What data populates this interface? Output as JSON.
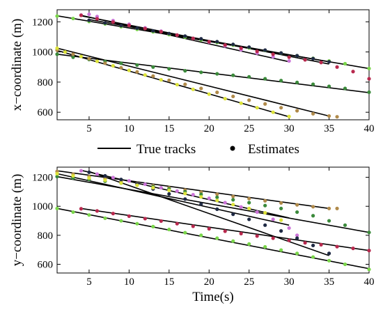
{
  "chart_data": [
    {
      "type": "line",
      "title": "",
      "xlabel": "",
      "ylabel": "x−coordinate (m)",
      "xlim": [
        1,
        40
      ],
      "ylim": [
        550,
        1280
      ],
      "xticks": [
        5,
        10,
        15,
        20,
        25,
        30,
        35,
        40
      ],
      "xtick_labels": [
        "5",
        "10",
        "15",
        "20",
        "25",
        "30",
        "35",
        "40"
      ],
      "yticks": [
        600,
        800,
        1000,
        1200
      ],
      "ytick_labels": [
        "600",
        "800",
        "1000",
        "1200"
      ],
      "grid": false,
      "series": [
        {
          "kind": "true_track",
          "color": "#000000",
          "x": [
            1,
            40
          ],
          "y": [
            1240,
            890
          ]
        },
        {
          "kind": "estimate",
          "color": "#7ad64a",
          "x": [
            1,
            3,
            5,
            7,
            9,
            11,
            13,
            15,
            17,
            19,
            21,
            23,
            25,
            27,
            29,
            31,
            33,
            35,
            37,
            40
          ],
          "y": [
            1238,
            1222,
            1202,
            1186,
            1168,
            1150,
            1133,
            1115,
            1098,
            1080,
            1062,
            1045,
            1027,
            1010,
            992,
            975,
            958,
            940,
            922,
            890
          ]
        },
        {
          "kind": "true_track",
          "color": "#000000",
          "x": [
            4,
            30
          ],
          "y": [
            1243,
            935
          ]
        },
        {
          "kind": "estimate",
          "color": "#cc74d8",
          "x": [
            4,
            5,
            6,
            8,
            10,
            12,
            14,
            16,
            18,
            20,
            22,
            24,
            26,
            28,
            30
          ],
          "y": [
            1245,
            1250,
            1235,
            1208,
            1184,
            1160,
            1138,
            1112,
            1090,
            1065,
            1040,
            1015,
            992,
            968,
            940
          ]
        },
        {
          "kind": "true_track",
          "color": "#000000",
          "x": [
            4,
            35
          ],
          "y": [
            1240,
            920
          ]
        },
        {
          "kind": "estimate",
          "color": "#b8294e",
          "x": [
            4,
            6,
            8,
            10,
            12,
            14,
            16,
            18,
            20,
            22,
            24,
            26,
            28,
            30,
            32,
            34,
            36,
            38,
            40
          ],
          "y": [
            1243,
            1220,
            1198,
            1176,
            1155,
            1134,
            1112,
            1090,
            1068,
            1046,
            1025,
            1004,
            985,
            965,
            948,
            930,
            900,
            870,
            822
          ]
        },
        {
          "kind": "true_track",
          "color": "#000000",
          "x": [
            5,
            35
          ],
          "y": [
            1215,
            935
          ]
        },
        {
          "kind": "estimate",
          "color": "#1f2a44",
          "x": [
            5,
            7,
            9,
            11,
            13,
            15,
            17,
            19,
            21,
            23,
            25,
            27,
            29,
            31,
            33,
            35
          ],
          "y": [
            1210,
            1192,
            1175,
            1158,
            1140,
            1122,
            1105,
            1087,
            1068,
            1050,
            1032,
            1012,
            993,
            975,
            956,
            935
          ]
        },
        {
          "kind": "true_track",
          "color": "#000000",
          "x": [
            1,
            40
          ],
          "y": [
            985,
            730
          ]
        },
        {
          "kind": "estimate",
          "color": "#3b8a3b",
          "x": [
            1,
            3,
            5,
            7,
            9,
            11,
            13,
            15,
            17,
            19,
            21,
            23,
            25,
            27,
            29,
            31,
            33,
            35,
            37,
            40
          ],
          "y": [
            985,
            965,
            950,
            937,
            925,
            913,
            900,
            888,
            875,
            865,
            855,
            845,
            835,
            822,
            810,
            798,
            786,
            772,
            758,
            733
          ]
        },
        {
          "kind": "true_track",
          "color": "#000000",
          "x": [
            1,
            35
          ],
          "y": [
            1025,
            575
          ]
        },
        {
          "kind": "estimate",
          "color": "#b08a4a",
          "x": [
            1,
            3,
            5,
            7,
            9,
            11,
            13,
            15,
            17,
            19,
            21,
            23,
            25,
            27,
            29,
            31,
            33,
            35,
            36
          ],
          "y": [
            1012,
            985,
            955,
            925,
            895,
            868,
            840,
            812,
            785,
            758,
            732,
            705,
            680,
            655,
            630,
            610,
            590,
            575,
            570
          ]
        },
        {
          "kind": "true_track",
          "color": "#000000",
          "x": [
            1,
            30
          ],
          "y": [
            1010,
            570
          ]
        },
        {
          "kind": "estimate",
          "color": "#dde33a",
          "x": [
            1,
            2,
            4,
            6,
            8,
            10,
            12,
            14,
            16,
            18,
            20,
            22,
            24,
            26,
            28,
            30
          ],
          "y": [
            1025,
            1000,
            970,
            938,
            908,
            878,
            847,
            815,
            783,
            752,
            720,
            690,
            660,
            630,
            600,
            572
          ]
        }
      ]
    },
    {
      "type": "line",
      "title": "",
      "xlabel": "Time(s)",
      "ylabel": "y−coordinate (m)",
      "xlim": [
        1,
        40
      ],
      "ylim": [
        540,
        1270
      ],
      "xticks": [
        5,
        10,
        15,
        20,
        25,
        30,
        35,
        40
      ],
      "xtick_labels": [
        "5",
        "10",
        "15",
        "20",
        "25",
        "30",
        "35",
        "40"
      ],
      "yticks": [
        600,
        800,
        1000,
        1200
      ],
      "ytick_labels": [
        "600",
        "800",
        "1000",
        "1200"
      ],
      "grid": false,
      "series": [
        {
          "kind": "true_track",
          "color": "#000000",
          "x": [
            1,
            35
          ],
          "y": [
            1245,
            985
          ]
        },
        {
          "kind": "estimate",
          "color": "#b08a4a",
          "x": [
            1,
            3,
            5,
            7,
            9,
            11,
            13,
            15,
            17,
            19,
            21,
            23,
            25,
            27,
            29,
            31,
            33,
            35,
            36
          ],
          "y": [
            1240,
            1222,
            1205,
            1190,
            1172,
            1158,
            1142,
            1127,
            1112,
            1098,
            1083,
            1068,
            1053,
            1038,
            1023,
            1010,
            997,
            985,
            985
          ]
        },
        {
          "kind": "true_track",
          "color": "#000000",
          "x": [
            1,
            40
          ],
          "y": [
            1205,
            820
          ]
        },
        {
          "kind": "estimate",
          "color": "#3b8a3b",
          "x": [
            1,
            3,
            5,
            7,
            9,
            11,
            13,
            15,
            17,
            19,
            21,
            23,
            25,
            27,
            29,
            31,
            33,
            35,
            37,
            40
          ],
          "y": [
            1205,
            1195,
            1185,
            1173,
            1160,
            1148,
            1135,
            1120,
            1100,
            1082,
            1062,
            1045,
            1025,
            1005,
            985,
            960,
            935,
            900,
            870,
            820
          ]
        },
        {
          "kind": "true_track",
          "color": "#000000",
          "x": [
            4,
            30
          ],
          "y": [
            1248,
            920
          ]
        },
        {
          "kind": "estimate",
          "color": "#cc74d8",
          "x": [
            4,
            6,
            8,
            10,
            12,
            14,
            16,
            18,
            20,
            22,
            24,
            26,
            28,
            30,
            31
          ],
          "y": [
            1245,
            1222,
            1198,
            1175,
            1152,
            1128,
            1105,
            1080,
            1055,
            1025,
            995,
            960,
            910,
            850,
            800
          ]
        },
        {
          "kind": "true_track",
          "color": "#000000",
          "x": [
            5,
            35
          ],
          "y": [
            1240,
            660
          ]
        },
        {
          "kind": "estimate",
          "color": "#1f2a44",
          "x": [
            5,
            7,
            9,
            11,
            13,
            15,
            17,
            19,
            21,
            23,
            25,
            27,
            29,
            31,
            33,
            35
          ],
          "y": [
            1235,
            1210,
            1185,
            1155,
            1120,
            1085,
            1050,
            1015,
            980,
            945,
            910,
            870,
            830,
            780,
            730,
            675
          ]
        },
        {
          "kind": "true_track",
          "color": "#000000",
          "x": [
            1,
            40
          ],
          "y": [
            985,
            570
          ]
        },
        {
          "kind": "estimate",
          "color": "#7ad64a",
          "x": [
            1,
            3,
            5,
            7,
            9,
            11,
            13,
            15,
            17,
            19,
            21,
            23,
            25,
            27,
            29,
            31,
            33,
            35,
            37,
            40
          ],
          "y": [
            985,
            960,
            940,
            918,
            900,
            880,
            860,
            840,
            818,
            800,
            780,
            760,
            740,
            720,
            698,
            675,
            650,
            625,
            600,
            565
          ]
        },
        {
          "kind": "true_track",
          "color": "#000000",
          "x": [
            4,
            40
          ],
          "y": [
            985,
            695
          ]
        },
        {
          "kind": "estimate",
          "color": "#b8294e",
          "x": [
            4,
            6,
            8,
            10,
            12,
            14,
            16,
            18,
            20,
            22,
            24,
            26,
            28,
            30,
            32,
            34,
            36,
            38,
            40
          ],
          "y": [
            983,
            968,
            950,
            932,
            915,
            898,
            880,
            862,
            845,
            828,
            812,
            795,
            780,
            765,
            748,
            735,
            722,
            710,
            695
          ]
        },
        {
          "kind": "true_track",
          "color": "#000000",
          "x": [
            1,
            30
          ],
          "y": [
            1225,
            870
          ]
        },
        {
          "kind": "estimate",
          "color": "#dde33a",
          "x": [
            1,
            3,
            5,
            7,
            9,
            11,
            13,
            15,
            17,
            19,
            21,
            23,
            25,
            27,
            29
          ],
          "y": [
            1225,
            1210,
            1195,
            1180,
            1160,
            1145,
            1128,
            1110,
            1088,
            1065,
            1040,
            1012,
            985,
            955,
            905
          ]
        }
      ]
    }
  ],
  "legend": {
    "placement": "between-plots",
    "entries": [
      {
        "label": "True tracks",
        "marker": "line"
      },
      {
        "label": "Estimates",
        "marker": "dot"
      }
    ]
  }
}
